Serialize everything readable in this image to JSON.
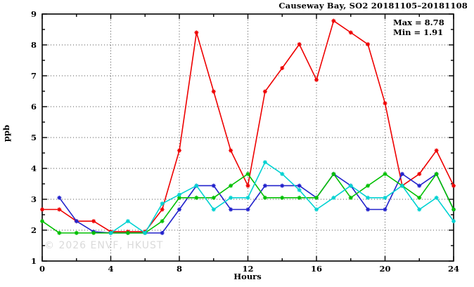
{
  "title": "Causeway Bay, SO2 20181105–20181108",
  "annotations": {
    "max_label": "Max = 8.78",
    "min_label": "Min = 1.91"
  },
  "watermark": "© 2026 ENVF, HKUST",
  "chart_data": {
    "type": "line",
    "title": "Causeway Bay, SO2 20181105–20181108",
    "xlabel": "Hours",
    "ylabel": "ppb",
    "xlim": [
      0,
      24
    ],
    "ylim": [
      1,
      9
    ],
    "x_major_ticks": [
      0,
      4,
      8,
      12,
      16,
      20,
      24
    ],
    "x_minor_ticks": [
      2,
      6,
      10,
      14,
      18,
      22
    ],
    "y_major_ticks": [
      1,
      2,
      3,
      4,
      5,
      6,
      7,
      8,
      9
    ],
    "y_minor_step": 0.5,
    "grid": true,
    "grid_x_lines": [
      4,
      8,
      12,
      16,
      20
    ],
    "grid_y_lines": [
      2,
      3,
      4,
      5,
      6,
      7,
      8
    ],
    "legend_position": "none",
    "stats": {
      "max": 8.78,
      "min": 1.91
    },
    "x": [
      0,
      1,
      2,
      3,
      4,
      5,
      6,
      7,
      8,
      9,
      10,
      11,
      12,
      13,
      14,
      15,
      16,
      17,
      18,
      19,
      20,
      21,
      22,
      23,
      24
    ],
    "series": [
      {
        "name": "series-red",
        "color": "#ee0000",
        "values": [
          2.67,
          2.67,
          2.29,
          2.29,
          1.95,
          1.95,
          1.95,
          2.67,
          4.58,
          8.4,
          6.49,
          4.58,
          3.44,
          6.49,
          7.25,
          8.02,
          6.87,
          8.78,
          8.4,
          8.02,
          6.11,
          3.44,
          3.82,
          4.58,
          3.44
        ]
      },
      {
        "name": "series-blue",
        "color": "#2222cc",
        "values": [
          null,
          3.05,
          2.29,
          1.95,
          1.91,
          1.91,
          1.91,
          1.91,
          2.67,
          3.44,
          3.44,
          2.67,
          2.67,
          3.44,
          3.44,
          3.44,
          3.05,
          3.82,
          3.44,
          2.67,
          2.67,
          3.82,
          3.44,
          3.82,
          2.67
        ]
      },
      {
        "name": "series-green",
        "color": "#00c000",
        "values": [
          2.29,
          1.91,
          1.91,
          1.91,
          1.91,
          1.91,
          1.91,
          2.29,
          3.05,
          3.05,
          3.05,
          3.44,
          3.82,
          3.05,
          3.05,
          3.05,
          3.05,
          3.82,
          3.05,
          3.44,
          3.82,
          3.44,
          3.05,
          3.82,
          2.67
        ]
      },
      {
        "name": "series-cyan",
        "color": "#00d2d2",
        "values": [
          null,
          null,
          null,
          null,
          1.91,
          2.29,
          1.91,
          2.86,
          3.15,
          3.44,
          2.67,
          3.05,
          3.05,
          4.2,
          3.82,
          3.3,
          2.67,
          3.05,
          3.44,
          3.05,
          3.05,
          3.44,
          2.67,
          3.05,
          2.29
        ]
      }
    ]
  }
}
